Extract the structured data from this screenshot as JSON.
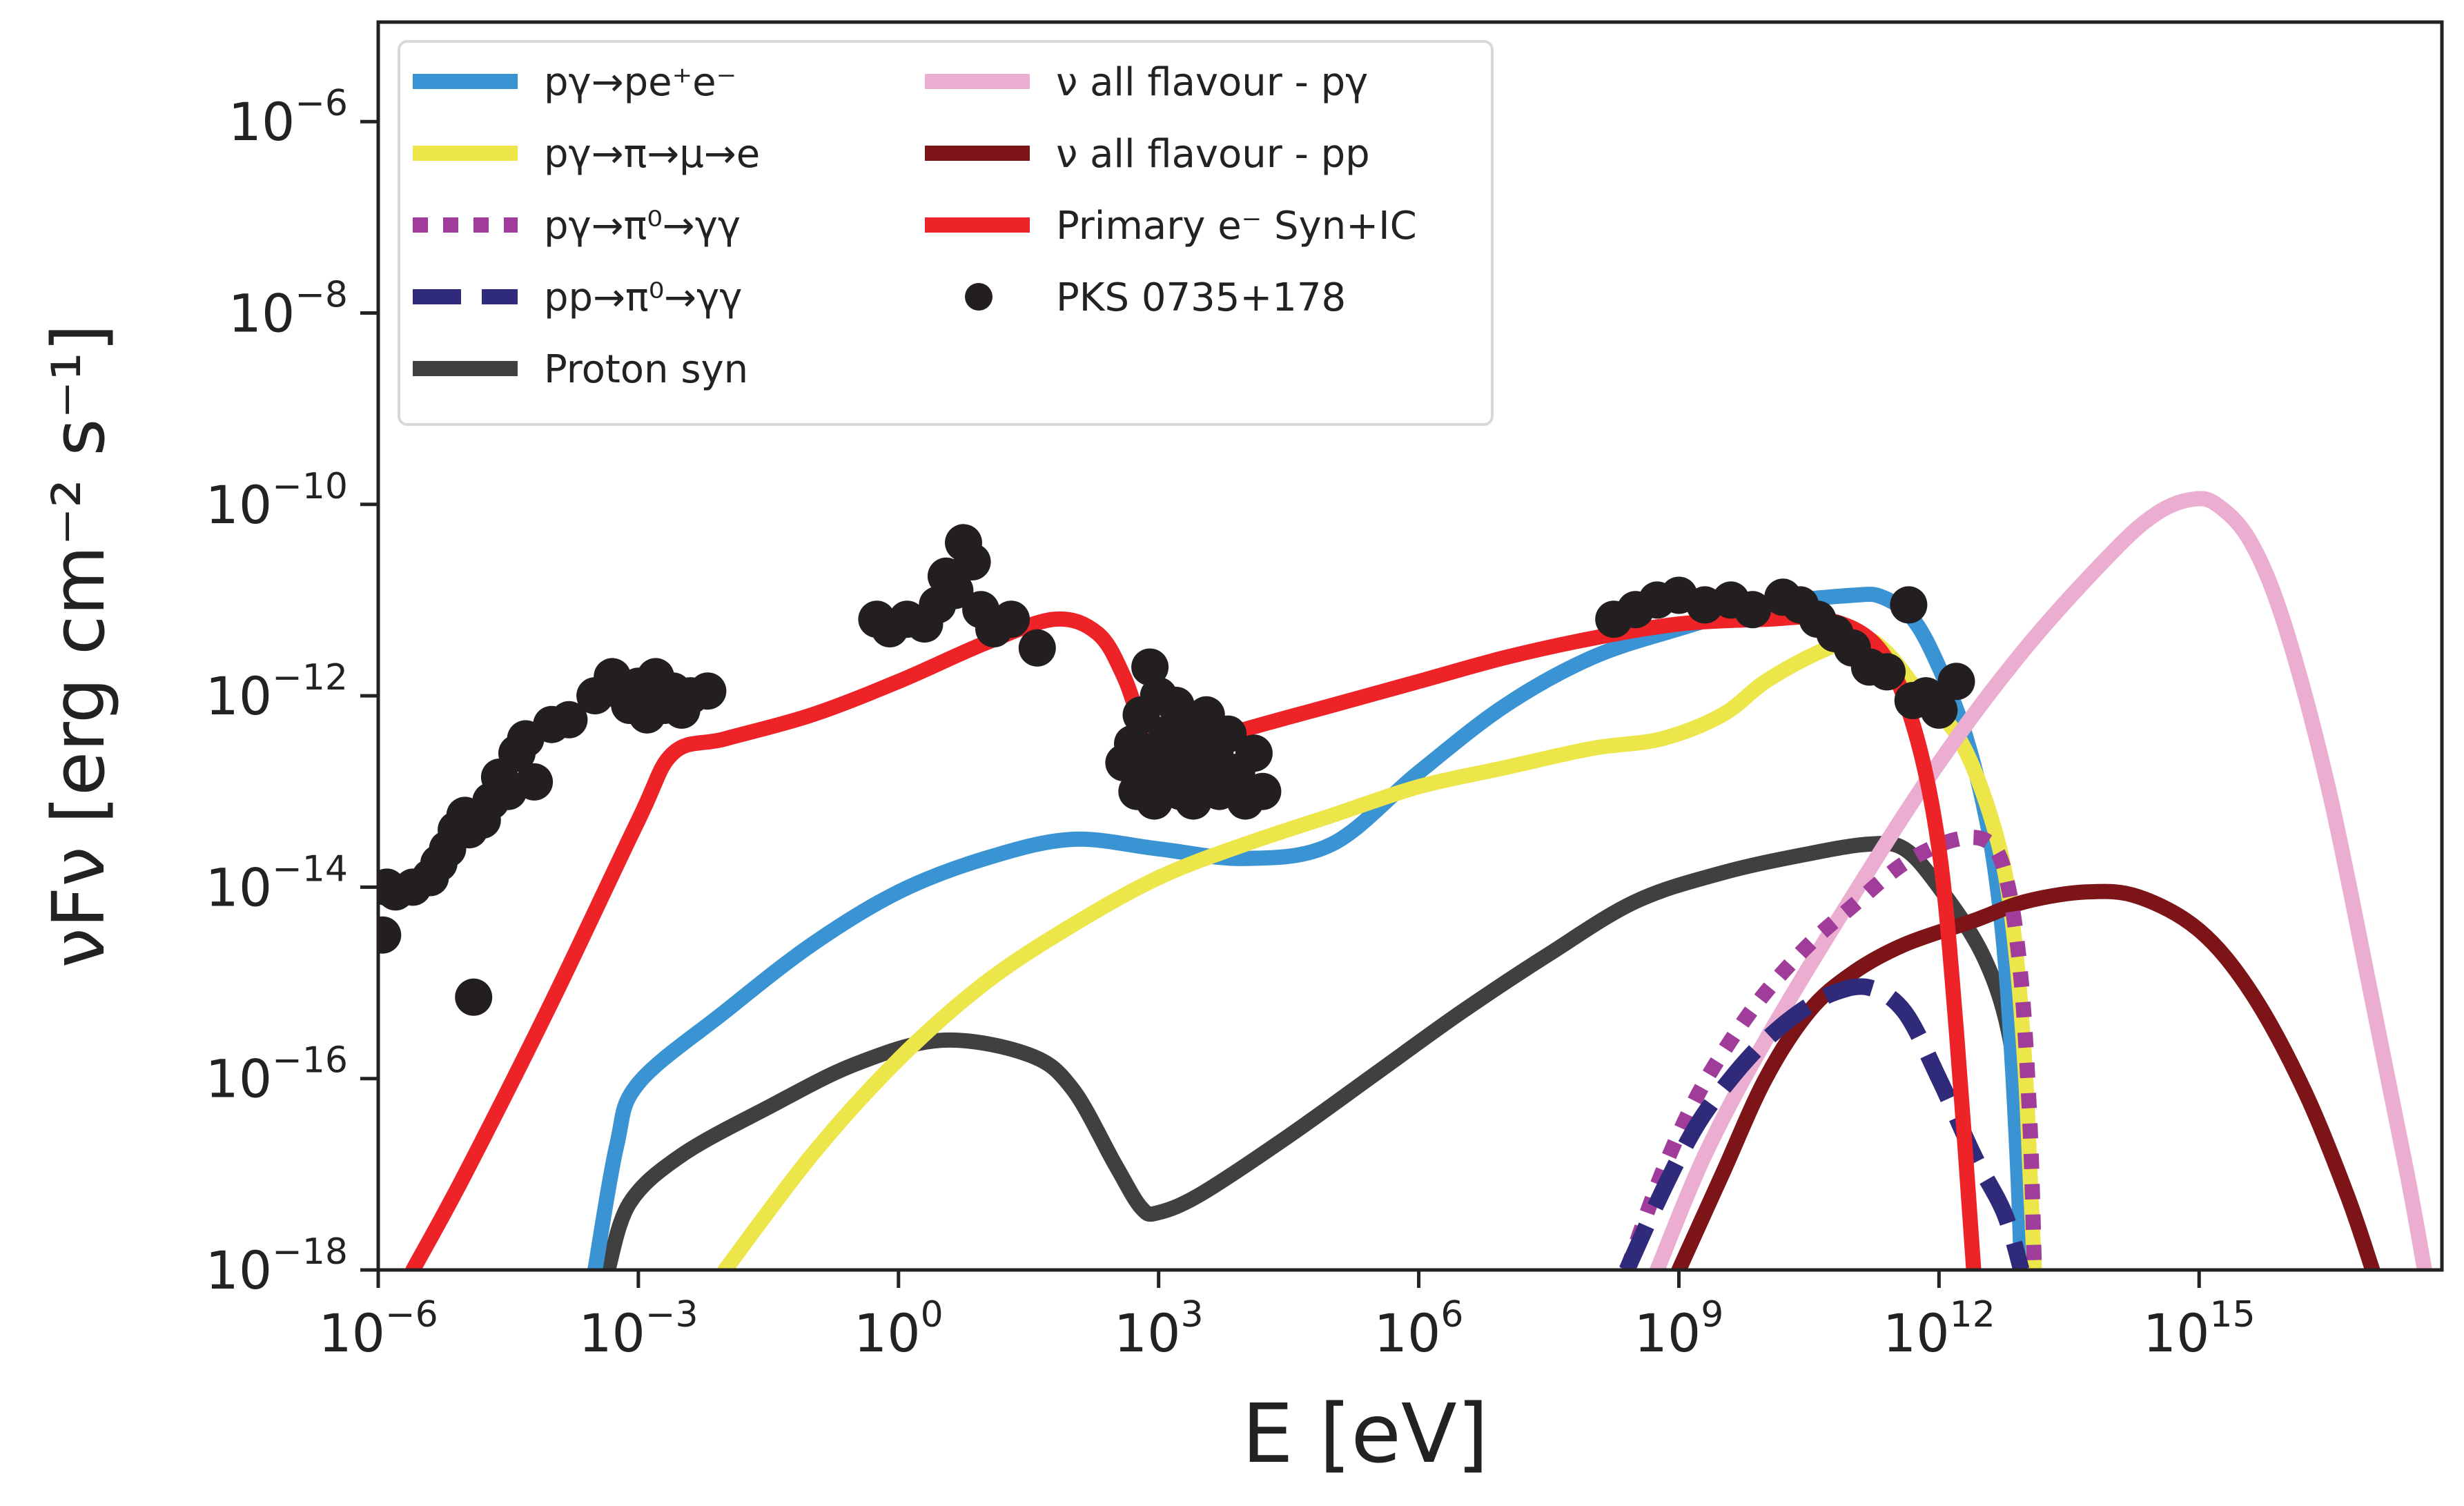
{
  "chart_data": {
    "type": "line",
    "xlabel": "E [eV]",
    "ylabel": "νFν [erg cm⁻² s⁻¹]",
    "xscale": "log",
    "yscale": "log",
    "xlim_exp": [
      -6,
      17.8
    ],
    "ylim_exp": [
      -18,
      -4.96
    ],
    "x_ticks": [
      {
        "base": "10",
        "exp": "−6",
        "value": -6
      },
      {
        "base": "10",
        "exp": "−3",
        "value": -3
      },
      {
        "base": "10",
        "exp": "0",
        "value": 0
      },
      {
        "base": "10",
        "exp": "3",
        "value": 3
      },
      {
        "base": "10",
        "exp": "6",
        "value": 6
      },
      {
        "base": "10",
        "exp": "9",
        "value": 9
      },
      {
        "base": "10",
        "exp": "12",
        "value": 12
      },
      {
        "base": "10",
        "exp": "15",
        "value": 15
      }
    ],
    "y_ticks": [
      {
        "base": "10",
        "exp": "−6",
        "value": -6
      },
      {
        "base": "10",
        "exp": "−8",
        "value": -8
      },
      {
        "base": "10",
        "exp": "−10",
        "value": -10
      },
      {
        "base": "10",
        "exp": "−12",
        "value": -12
      },
      {
        "base": "10",
        "exp": "−14",
        "value": -14
      },
      {
        "base": "10",
        "exp": "−16",
        "value": -16
      },
      {
        "base": "10",
        "exp": "−18",
        "value": -18
      }
    ],
    "grid": false,
    "legend_position": "top-left, two columns",
    "legend": [
      {
        "label": "pγ→pe⁺e⁻",
        "style": "solid",
        "color": "#3a93d2",
        "series_index": 0
      },
      {
        "label": "pγ→π→μ→e",
        "style": "solid",
        "color": "#ece64a",
        "series_index": 1
      },
      {
        "label": "pγ→π⁰→γγ",
        "style": "dotted",
        "color": "#a03c9a",
        "series_index": 2
      },
      {
        "label": "pp→π⁰→γγ",
        "style": "dashed",
        "color": "#302a7a",
        "series_index": 3
      },
      {
        "label": "Proton syn",
        "style": "solid",
        "color": "#404040",
        "series_index": 4
      },
      {
        "label": "ν all flavour - pγ",
        "style": "solid",
        "color": "#ebaed1",
        "series_index": 5
      },
      {
        "label": "ν all flavour - pp",
        "style": "solid",
        "color": "#7d1518",
        "series_index": 6
      },
      {
        "label": "Primary e⁻ Syn+IC",
        "style": "solid",
        "color": "#ee2328",
        "series_index": 7
      },
      {
        "label": "PKS 0735+178",
        "style": "marker",
        "color": "#231f20",
        "series_index": 8
      }
    ],
    "series": [
      {
        "name": "pγ→pe⁺e⁻",
        "color": "#3a93d2",
        "style": "solid",
        "points": [
          [
            -3.5,
            -18
          ],
          [
            -3.25,
            -16.7
          ],
          [
            -3.0,
            -16.05
          ],
          [
            -2.0,
            -15.3
          ],
          [
            -1.0,
            -14.6
          ],
          [
            0.0,
            -14.05
          ],
          [
            1.0,
            -13.7
          ],
          [
            2.0,
            -13.5
          ],
          [
            3.0,
            -13.6
          ],
          [
            4.0,
            -13.7
          ],
          [
            5.0,
            -13.55
          ],
          [
            6.0,
            -12.8
          ],
          [
            7.0,
            -12.1
          ],
          [
            8.0,
            -11.6
          ],
          [
            9.0,
            -11.3
          ],
          [
            10.0,
            -11.05
          ],
          [
            11.0,
            -10.95
          ],
          [
            11.35,
            -10.97
          ],
          [
            11.7,
            -11.2
          ],
          [
            12.0,
            -11.7
          ],
          [
            12.3,
            -12.4
          ],
          [
            12.55,
            -13.3
          ],
          [
            12.7,
            -14.2
          ],
          [
            12.8,
            -15.2
          ],
          [
            12.9,
            -16.8
          ],
          [
            12.95,
            -18
          ]
        ]
      },
      {
        "name": "pγ→π→μ→e",
        "color": "#ece64a",
        "style": "solid",
        "points": [
          [
            -2.0,
            -18
          ],
          [
            -1.0,
            -16.8
          ],
          [
            0.0,
            -15.8
          ],
          [
            1.0,
            -15.0
          ],
          [
            2.0,
            -14.4
          ],
          [
            3.0,
            -13.9
          ],
          [
            4.0,
            -13.55
          ],
          [
            5.0,
            -13.25
          ],
          [
            6.0,
            -12.95
          ],
          [
            7.0,
            -12.75
          ],
          [
            8.0,
            -12.55
          ],
          [
            8.8,
            -12.45
          ],
          [
            9.5,
            -12.2
          ],
          [
            10.0,
            -11.85
          ],
          [
            10.6,
            -11.55
          ],
          [
            11.1,
            -11.4
          ],
          [
            11.4,
            -11.55
          ],
          [
            11.8,
            -12.0
          ],
          [
            12.2,
            -12.4
          ],
          [
            12.5,
            -13.0
          ],
          [
            12.75,
            -13.8
          ],
          [
            12.9,
            -14.8
          ],
          [
            13.0,
            -16.0
          ],
          [
            13.05,
            -17.0
          ],
          [
            13.1,
            -18
          ]
        ]
      },
      {
        "name": "pγ→π⁰→γγ",
        "color": "#a03c9a",
        "style": "dotted",
        "points": [
          [
            8.4,
            -18
          ],
          [
            8.8,
            -17.0
          ],
          [
            9.2,
            -16.2
          ],
          [
            9.6,
            -15.6
          ],
          [
            10.0,
            -15.1
          ],
          [
            10.5,
            -14.6
          ],
          [
            11.0,
            -14.2
          ],
          [
            11.6,
            -13.75
          ],
          [
            12.2,
            -13.5
          ],
          [
            12.6,
            -13.55
          ],
          [
            12.8,
            -14.0
          ],
          [
            12.95,
            -15.0
          ],
          [
            13.05,
            -16.5
          ],
          [
            13.1,
            -18
          ]
        ]
      },
      {
        "name": "pp→π⁰→γγ",
        "color": "#302a7a",
        "style": "dashed",
        "points": [
          [
            8.4,
            -18
          ],
          [
            8.8,
            -17.2
          ],
          [
            9.2,
            -16.5
          ],
          [
            9.6,
            -16.0
          ],
          [
            10.0,
            -15.6
          ],
          [
            10.4,
            -15.3
          ],
          [
            10.8,
            -15.1
          ],
          [
            11.2,
            -15.05
          ],
          [
            11.6,
            -15.3
          ],
          [
            12.0,
            -16.0
          ],
          [
            12.4,
            -16.8
          ],
          [
            12.75,
            -17.4
          ],
          [
            12.95,
            -18
          ]
        ]
      },
      {
        "name": "Proton syn",
        "color": "#404040",
        "style": "solid",
        "points": [
          [
            -3.35,
            -18
          ],
          [
            -3.1,
            -17.3
          ],
          [
            -2.5,
            -16.8
          ],
          [
            -1.5,
            -16.3
          ],
          [
            -0.5,
            -15.85
          ],
          [
            0.5,
            -15.6
          ],
          [
            1.5,
            -15.75
          ],
          [
            2.0,
            -16.1
          ],
          [
            2.5,
            -16.9
          ],
          [
            2.8,
            -17.35
          ],
          [
            3.0,
            -17.4
          ],
          [
            3.5,
            -17.2
          ],
          [
            4.5,
            -16.6
          ],
          [
            5.5,
            -15.95
          ],
          [
            6.5,
            -15.3
          ],
          [
            7.5,
            -14.7
          ],
          [
            8.5,
            -14.15
          ],
          [
            9.5,
            -13.85
          ],
          [
            10.5,
            -13.65
          ],
          [
            11.2,
            -13.55
          ],
          [
            11.6,
            -13.6
          ],
          [
            12.0,
            -14.0
          ],
          [
            12.5,
            -14.7
          ],
          [
            12.8,
            -15.5
          ],
          [
            12.95,
            -16.6
          ],
          [
            13.0,
            -18
          ]
        ]
      },
      {
        "name": "ν all flavour - pγ",
        "color": "#ebaed1",
        "style": "solid",
        "points": [
          [
            8.75,
            -18
          ],
          [
            9.3,
            -16.8
          ],
          [
            10.0,
            -15.6
          ],
          [
            11.0,
            -14.1
          ],
          [
            12.0,
            -12.7
          ],
          [
            13.0,
            -11.5
          ],
          [
            14.0,
            -10.5
          ],
          [
            14.5,
            -10.1
          ],
          [
            14.9,
            -9.95
          ],
          [
            15.2,
            -10.0
          ],
          [
            15.6,
            -10.4
          ],
          [
            16.0,
            -11.3
          ],
          [
            16.5,
            -13.0
          ],
          [
            17.0,
            -15.2
          ],
          [
            17.4,
            -17.0
          ],
          [
            17.6,
            -18
          ]
        ]
      },
      {
        "name": "ν all flavour - pp",
        "color": "#7d1518",
        "style": "solid",
        "points": [
          [
            9.0,
            -18
          ],
          [
            9.5,
            -17.0
          ],
          [
            10.0,
            -16.0
          ],
          [
            10.5,
            -15.3
          ],
          [
            11.0,
            -14.9
          ],
          [
            11.6,
            -14.6
          ],
          [
            12.4,
            -14.35
          ],
          [
            13.0,
            -14.15
          ],
          [
            13.7,
            -14.05
          ],
          [
            14.3,
            -14.1
          ],
          [
            15.0,
            -14.45
          ],
          [
            15.6,
            -15.1
          ],
          [
            16.2,
            -16.1
          ],
          [
            16.7,
            -17.2
          ],
          [
            17.0,
            -18
          ]
        ]
      },
      {
        "name": "Primary e⁻ Syn+IC",
        "color": "#ee2328",
        "style": "solid",
        "points": [
          [
            -5.6,
            -18
          ],
          [
            -5.0,
            -17.0
          ],
          [
            -4.0,
            -15.2
          ],
          [
            -3.0,
            -13.3
          ],
          [
            -2.6,
            -12.6
          ],
          [
            -2.0,
            -12.45
          ],
          [
            -1.0,
            -12.2
          ],
          [
            0.0,
            -11.85
          ],
          [
            1.0,
            -11.45
          ],
          [
            1.8,
            -11.2
          ],
          [
            2.3,
            -11.35
          ],
          [
            2.6,
            -11.8
          ],
          [
            2.8,
            -12.3
          ],
          [
            3.0,
            -12.6
          ],
          [
            3.5,
            -12.5
          ],
          [
            4.0,
            -12.35
          ],
          [
            5.0,
            -12.1
          ],
          [
            6.0,
            -11.85
          ],
          [
            7.0,
            -11.6
          ],
          [
            8.0,
            -11.4
          ],
          [
            9.0,
            -11.25
          ],
          [
            10.0,
            -11.2
          ],
          [
            10.7,
            -11.2
          ],
          [
            11.3,
            -11.5
          ],
          [
            11.7,
            -12.3
          ],
          [
            12.0,
            -13.6
          ],
          [
            12.2,
            -15.5
          ],
          [
            12.4,
            -18
          ]
        ]
      },
      {
        "name": "PKS 0735+178",
        "color": "#231f20",
        "style": "marker",
        "points": [
          [
            -5.95,
            -14.5
          ],
          [
            -5.9,
            -14.0
          ],
          [
            -5.8,
            -14.05
          ],
          [
            -5.6,
            -14.0
          ],
          [
            -5.4,
            -13.9
          ],
          [
            -5.3,
            -13.75
          ],
          [
            -5.2,
            -13.6
          ],
          [
            -5.1,
            -13.4
          ],
          [
            -5.0,
            -13.25
          ],
          [
            -4.95,
            -13.4
          ],
          [
            -4.9,
            -15.15
          ],
          [
            -4.8,
            -13.3
          ],
          [
            -4.7,
            -13.1
          ],
          [
            -4.6,
            -12.85
          ],
          [
            -4.5,
            -13.0
          ],
          [
            -4.4,
            -12.6
          ],
          [
            -4.3,
            -12.45
          ],
          [
            -4.2,
            -12.9
          ],
          [
            -4.0,
            -12.3
          ],
          [
            -3.8,
            -12.25
          ],
          [
            -3.5,
            -12.0
          ],
          [
            -3.3,
            -11.8
          ],
          [
            -3.2,
            -11.95
          ],
          [
            -3.1,
            -12.1
          ],
          [
            -3.0,
            -11.9
          ],
          [
            -2.9,
            -12.2
          ],
          [
            -2.8,
            -11.8
          ],
          [
            -2.7,
            -12.1
          ],
          [
            -2.6,
            -11.95
          ],
          [
            -2.5,
            -12.15
          ],
          [
            -2.4,
            -12.0
          ],
          [
            -2.2,
            -11.95
          ],
          [
            -0.25,
            -11.2
          ],
          [
            -0.1,
            -11.3
          ],
          [
            0.1,
            -11.2
          ],
          [
            0.3,
            -11.25
          ],
          [
            0.45,
            -11.05
          ],
          [
            0.55,
            -10.75
          ],
          [
            0.65,
            -10.9
          ],
          [
            0.75,
            -10.4
          ],
          [
            0.85,
            -10.6
          ],
          [
            0.95,
            -11.1
          ],
          [
            1.1,
            -11.3
          ],
          [
            1.3,
            -11.2
          ],
          [
            1.6,
            -11.5
          ],
          [
            2.6,
            -12.7
          ],
          [
            2.7,
            -12.5
          ],
          [
            2.75,
            -13.0
          ],
          [
            2.8,
            -12.2
          ],
          [
            2.85,
            -12.8
          ],
          [
            2.9,
            -11.7
          ],
          [
            2.95,
            -13.1
          ],
          [
            3.0,
            -12.0
          ],
          [
            3.05,
            -12.6
          ],
          [
            3.1,
            -12.4
          ],
          [
            3.15,
            -12.9
          ],
          [
            3.2,
            -12.1
          ],
          [
            3.25,
            -13.0
          ],
          [
            3.3,
            -12.7
          ],
          [
            3.35,
            -12.3
          ],
          [
            3.4,
            -13.1
          ],
          [
            3.45,
            -12.5
          ],
          [
            3.5,
            -12.9
          ],
          [
            3.55,
            -12.2
          ],
          [
            3.6,
            -12.8
          ],
          [
            3.65,
            -12.6
          ],
          [
            3.7,
            -13.0
          ],
          [
            3.8,
            -12.4
          ],
          [
            3.9,
            -12.8
          ],
          [
            4.0,
            -13.1
          ],
          [
            4.1,
            -12.6
          ],
          [
            4.2,
            -13.0
          ],
          [
            8.25,
            -11.2
          ],
          [
            8.5,
            -11.1
          ],
          [
            8.75,
            -11.0
          ],
          [
            9.0,
            -10.95
          ],
          [
            9.3,
            -11.05
          ],
          [
            9.6,
            -11.0
          ],
          [
            9.85,
            -11.1
          ],
          [
            10.2,
            -10.97
          ],
          [
            10.4,
            -11.05
          ],
          [
            10.6,
            -11.2
          ],
          [
            10.8,
            -11.35
          ],
          [
            11.0,
            -11.5
          ],
          [
            11.2,
            -11.7
          ],
          [
            11.4,
            -11.75
          ],
          [
            11.65,
            -11.05
          ],
          [
            11.7,
            -12.05
          ],
          [
            11.85,
            -12.0
          ],
          [
            12.0,
            -12.15
          ],
          [
            12.2,
            -11.85
          ]
        ]
      }
    ]
  }
}
